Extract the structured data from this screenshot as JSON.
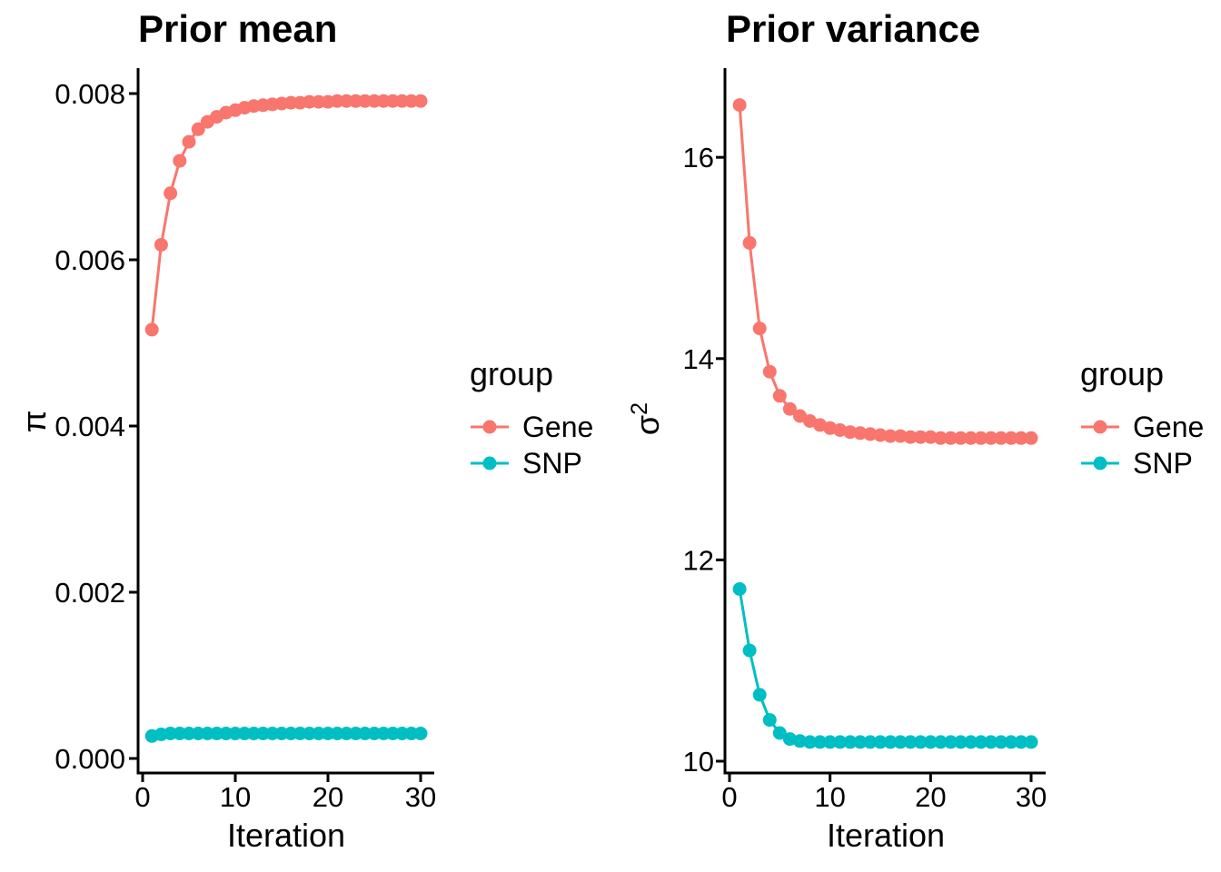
{
  "page": {
    "background": "#ffffff"
  },
  "colors": {
    "gene": "#F8766D",
    "snp": "#00BFC4",
    "axis": "#000000",
    "text": "#000000"
  },
  "legend": {
    "title": "group",
    "entries": [
      {
        "label": "Gene",
        "color": "#F8766D"
      },
      {
        "label": "SNP",
        "color": "#00BFC4"
      }
    ]
  },
  "chart_data": [
    {
      "type": "line",
      "title": "Prior mean",
      "xlabel": "Iteration",
      "ylabel": "π",
      "ylabel_base": "π",
      "ylabel_sup": "",
      "x": [
        1,
        2,
        3,
        4,
        5,
        6,
        7,
        8,
        9,
        10,
        11,
        12,
        13,
        14,
        15,
        16,
        17,
        18,
        19,
        20,
        21,
        22,
        23,
        24,
        25,
        26,
        27,
        28,
        29,
        30
      ],
      "series": [
        {
          "name": "Gene",
          "color": "#F8766D",
          "values": [
            0.00516,
            0.00618,
            0.0068,
            0.00719,
            0.00742,
            0.00757,
            0.00766,
            0.00772,
            0.00777,
            0.0078,
            0.00783,
            0.00785,
            0.00786,
            0.00787,
            0.00788,
            0.00789,
            0.00789,
            0.0079,
            0.0079,
            0.0079,
            0.00791,
            0.00791,
            0.00791,
            0.00791,
            0.00791,
            0.00791,
            0.00791,
            0.00791,
            0.00791,
            0.00791
          ]
        },
        {
          "name": "SNP",
          "color": "#00BFC4",
          "values": [
            0.00027,
            0.00029,
            0.0003,
            0.0003,
            0.0003,
            0.0003,
            0.0003,
            0.0003,
            0.0003,
            0.0003,
            0.0003,
            0.0003,
            0.0003,
            0.0003,
            0.0003,
            0.0003,
            0.0003,
            0.0003,
            0.0003,
            0.0003,
            0.0003,
            0.0003,
            0.0003,
            0.0003,
            0.0003,
            0.0003,
            0.0003,
            0.0003,
            0.0003,
            0.0003
          ]
        }
      ],
      "xticks": {
        "values": [
          0,
          10,
          20,
          30
        ],
        "labels": [
          "0",
          "10",
          "20",
          "30"
        ]
      },
      "yticks": {
        "values": [
          0.008,
          0.006,
          0.004,
          0.002,
          0.0
        ],
        "labels": [
          "0.008",
          "0.006",
          "0.004",
          "0.002",
          "0.000"
        ]
      },
      "xlim": [
        -0.5,
        31.5
      ],
      "ylim": [
        -0.00018,
        0.00831
      ],
      "grid": false,
      "legend_position": "right"
    },
    {
      "type": "line",
      "title": "Prior variance",
      "xlabel": "Iteration",
      "ylabel": "σ²",
      "ylabel_base": "σ",
      "ylabel_sup": "2",
      "x": [
        1,
        2,
        3,
        4,
        5,
        6,
        7,
        8,
        9,
        10,
        11,
        12,
        13,
        14,
        15,
        16,
        17,
        18,
        19,
        20,
        21,
        22,
        23,
        24,
        25,
        26,
        27,
        28,
        29,
        30
      ],
      "series": [
        {
          "name": "Gene",
          "color": "#F8766D",
          "values": [
            16.52,
            15.15,
            14.3,
            13.87,
            13.63,
            13.5,
            13.43,
            13.38,
            13.34,
            13.31,
            13.29,
            13.27,
            13.26,
            13.25,
            13.24,
            13.23,
            13.23,
            13.22,
            13.22,
            13.22,
            13.21,
            13.21,
            13.21,
            13.21,
            13.21,
            13.21,
            13.21,
            13.21,
            13.21,
            13.21
          ]
        },
        {
          "name": "SNP",
          "color": "#00BFC4",
          "values": [
            11.71,
            11.1,
            10.66,
            10.41,
            10.28,
            10.22,
            10.2,
            10.19,
            10.19,
            10.19,
            10.19,
            10.19,
            10.19,
            10.19,
            10.19,
            10.19,
            10.19,
            10.19,
            10.19,
            10.19,
            10.19,
            10.19,
            10.19,
            10.19,
            10.19,
            10.19,
            10.19,
            10.19,
            10.19,
            10.19
          ]
        }
      ],
      "xticks": {
        "values": [
          0,
          10,
          20,
          30
        ],
        "labels": [
          "0",
          "10",
          "20",
          "30"
        ]
      },
      "yticks": {
        "values": [
          16,
          14,
          12,
          10
        ],
        "labels": [
          "16",
          "14",
          "12",
          "10"
        ]
      },
      "xlim": [
        -0.5,
        31.5
      ],
      "ylim": [
        9.87,
        16.89
      ],
      "grid": false,
      "legend_position": "right"
    }
  ]
}
